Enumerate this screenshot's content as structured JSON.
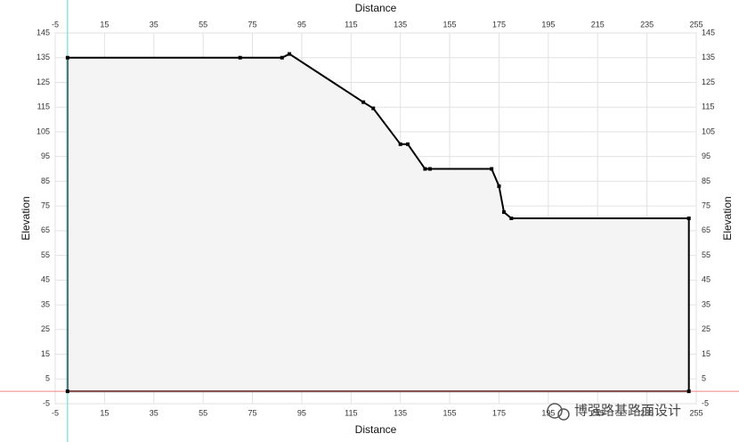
{
  "chart_data": {
    "type": "area",
    "xlabel": "Distance",
    "ylabel": "Elevation",
    "x": [
      0,
      0,
      70,
      87,
      90,
      120,
      124,
      135,
      138,
      145,
      147,
      172,
      175,
      177,
      180,
      252,
      252
    ],
    "values": [
      0,
      135,
      135,
      135,
      136.5,
      117,
      114.5,
      100,
      100,
      90,
      90,
      90,
      83,
      72.5,
      70,
      70,
      0
    ],
    "color": "#000000",
    "fill": "#f4f4f4",
    "xlim": [
      -5,
      255
    ],
    "xticks": [
      -5,
      15,
      35,
      55,
      75,
      95,
      115,
      135,
      155,
      175,
      195,
      215,
      235,
      255
    ],
    "ylim": [
      -5,
      145
    ],
    "yticks": [
      -5,
      5,
      15,
      25,
      35,
      45,
      55,
      65,
      75,
      85,
      95,
      105,
      115,
      125,
      135,
      145
    ],
    "grid": true,
    "annotation": "博强路基路面设计"
  }
}
